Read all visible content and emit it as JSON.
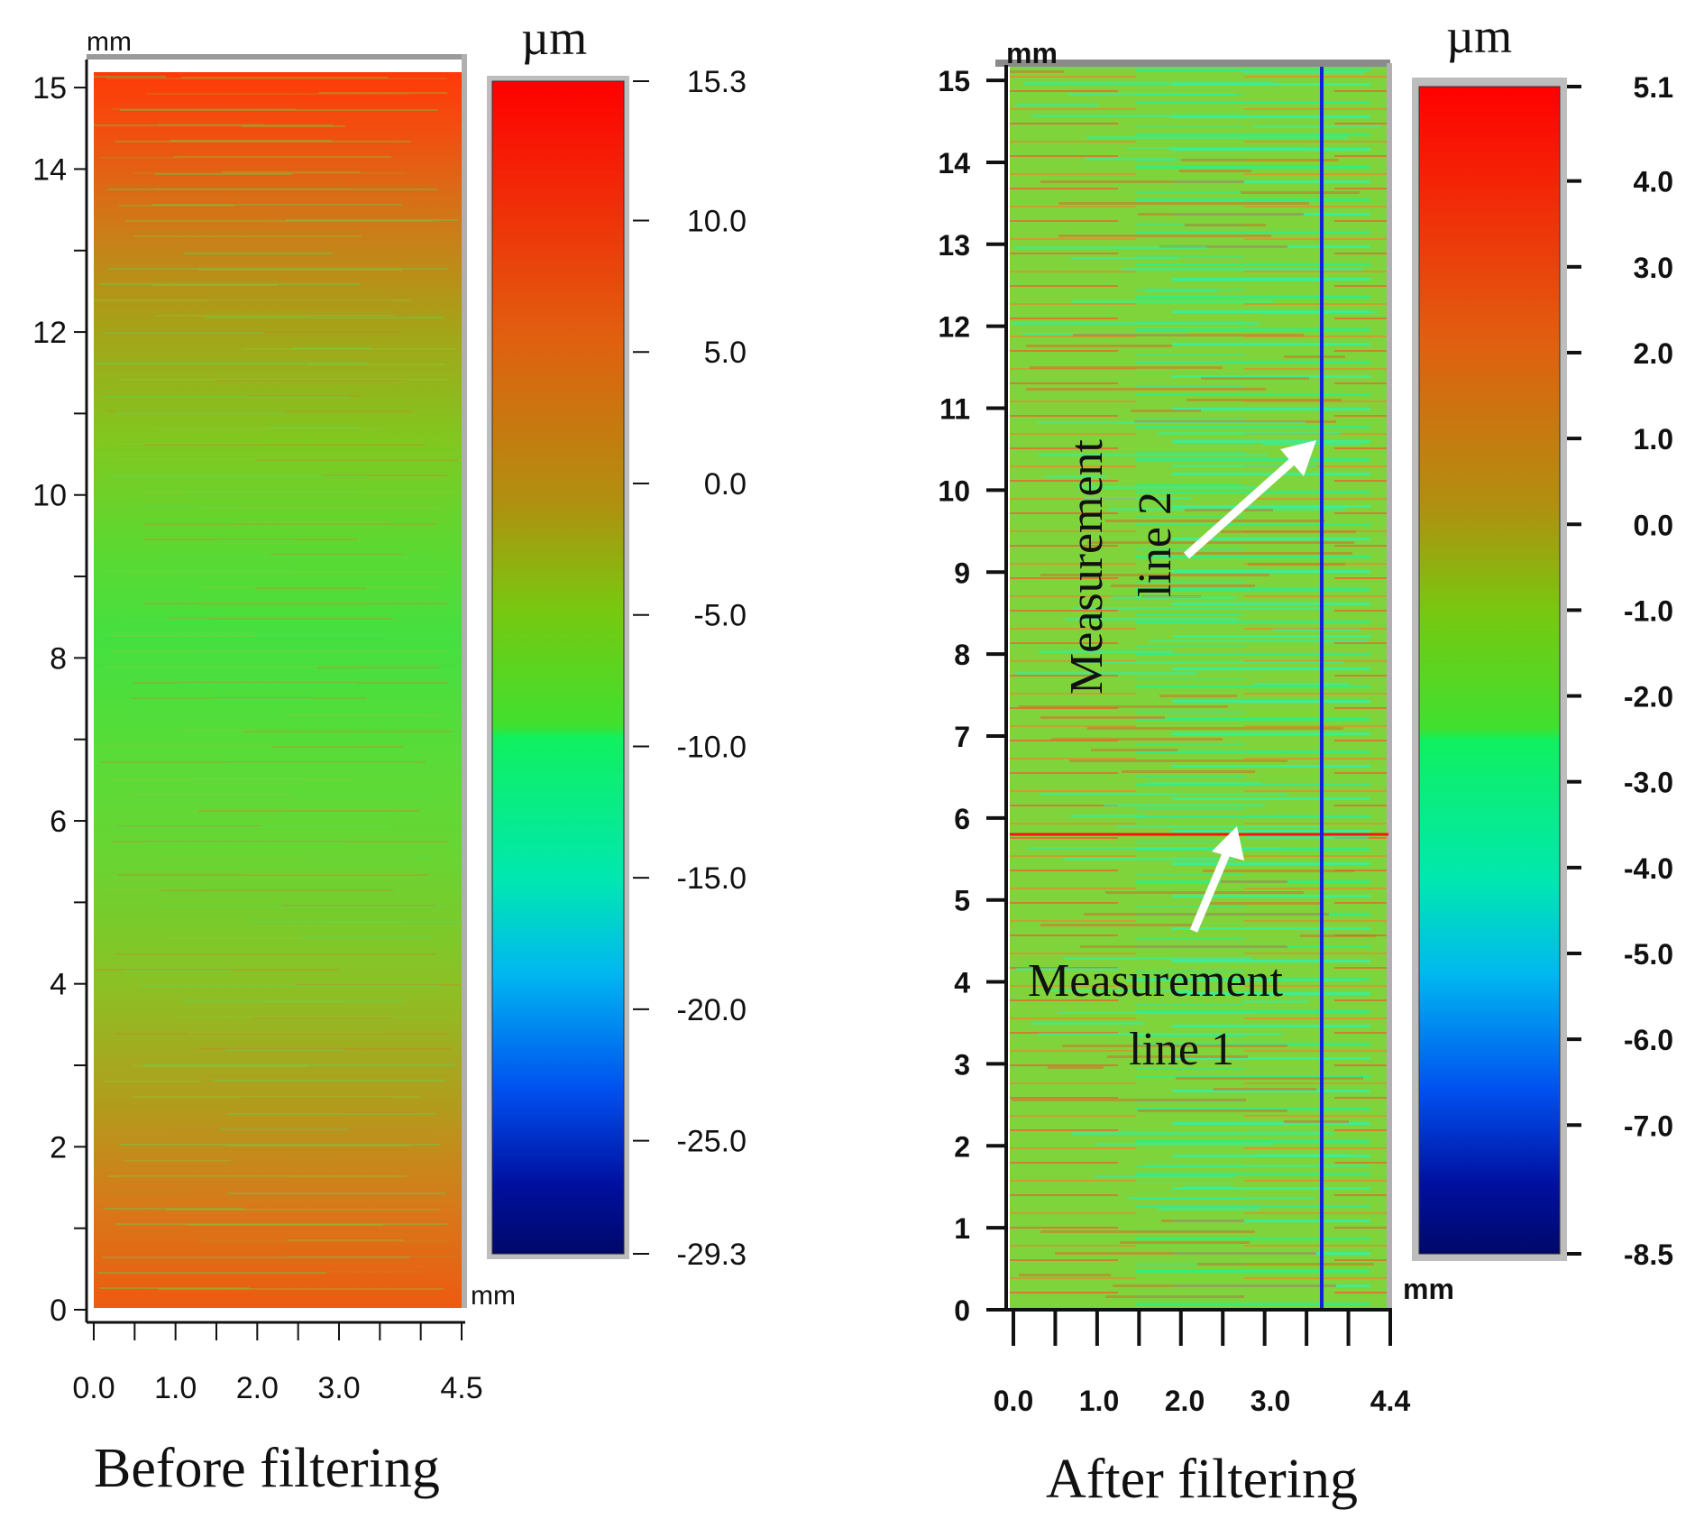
{
  "chart_data": [
    {
      "type": "heatmap",
      "caption": "Before filtering",
      "x_unit": "mm",
      "y_unit": "mm",
      "z_unit": "µm",
      "xlim": [
        0,
        4.5
      ],
      "ylim": [
        0,
        15.3
      ],
      "x_tick_labels": [
        "0.0",
        "1.0",
        "2.0",
        "3.0",
        "4.5"
      ],
      "x_tick_values": [
        0.0,
        1.0,
        2.0,
        3.0,
        4.5
      ],
      "x_minor_tick_count": 10,
      "y_tick_labels": [
        "0",
        "2",
        "4",
        "6",
        "8",
        "10",
        "12",
        "14",
        "15"
      ],
      "y_tick_values": [
        0,
        2,
        4,
        6,
        8,
        10,
        12,
        14,
        15
      ],
      "colorbar": {
        "min": -29.3,
        "max": 15.3,
        "tick_labels": [
          "15.3",
          "10.0",
          "5.0",
          "0.0",
          "-5.0",
          "-10.0",
          "-15.0",
          "-20.0",
          "-25.0",
          "-29.3"
        ],
        "tick_values": [
          15.3,
          10.0,
          5.0,
          0.0,
          -5.0,
          -10.0,
          -15.0,
          -20.0,
          -25.0,
          -29.3
        ]
      },
      "surface_profile": {
        "y_mm": [
          0,
          1,
          2,
          3,
          4,
          5,
          6,
          7,
          8,
          9,
          10,
          11,
          12,
          13,
          14,
          15
        ],
        "height_um": [
          5.5,
          4.5,
          3.0,
          2.0,
          0.5,
          -1.0,
          -2.5,
          -3.5,
          -4.0,
          -4.8,
          -4.5,
          -3.5,
          -1.5,
          1.5,
          5.0,
          10.5
        ]
      }
    },
    {
      "type": "heatmap",
      "caption": "After filtering",
      "x_unit": "mm",
      "y_unit": "mm",
      "z_unit": "µm",
      "xlim": [
        0,
        4.4
      ],
      "ylim": [
        0,
        15.1
      ],
      "x_tick_labels": [
        "0.0",
        "1.0",
        "2.0",
        "3.0",
        "4.4"
      ],
      "x_tick_values": [
        0.0,
        1.0,
        2.0,
        3.0,
        4.4
      ],
      "x_minor_tick_count": 10,
      "y_tick_labels": [
        "0",
        "1",
        "2",
        "3",
        "4",
        "5",
        "6",
        "7",
        "8",
        "9",
        "10",
        "11",
        "12",
        "13",
        "14",
        "15"
      ],
      "y_tick_values": [
        0,
        1,
        2,
        3,
        4,
        5,
        6,
        7,
        8,
        9,
        10,
        11,
        12,
        13,
        14,
        15
      ],
      "colorbar": {
        "min": -8.5,
        "max": 5.1,
        "tick_labels": [
          "5.1",
          "4.0",
          "3.0",
          "2.0",
          "1.0",
          "0.0",
          "-1.0",
          "-2.0",
          "-3.0",
          "-4.0",
          "-5.0",
          "-6.0",
          "-7.0",
          "-8.5"
        ],
        "tick_values": [
          5.1,
          4.0,
          3.0,
          2.0,
          1.0,
          0.0,
          -1.0,
          -2.0,
          -3.0,
          -4.0,
          -5.0,
          -6.0,
          -7.0,
          -8.5
        ]
      },
      "measurement_lines": [
        {
          "label_line1": "Measurement",
          "label_line2": "line 1",
          "orientation": "horizontal",
          "y_mm": 5.8,
          "color": "#ff1010"
        },
        {
          "label_line1": "Measurement",
          "label_line2": "line 2",
          "orientation": "vertical",
          "x_mm": 3.6,
          "color": "#1420d8"
        }
      ]
    }
  ]
}
